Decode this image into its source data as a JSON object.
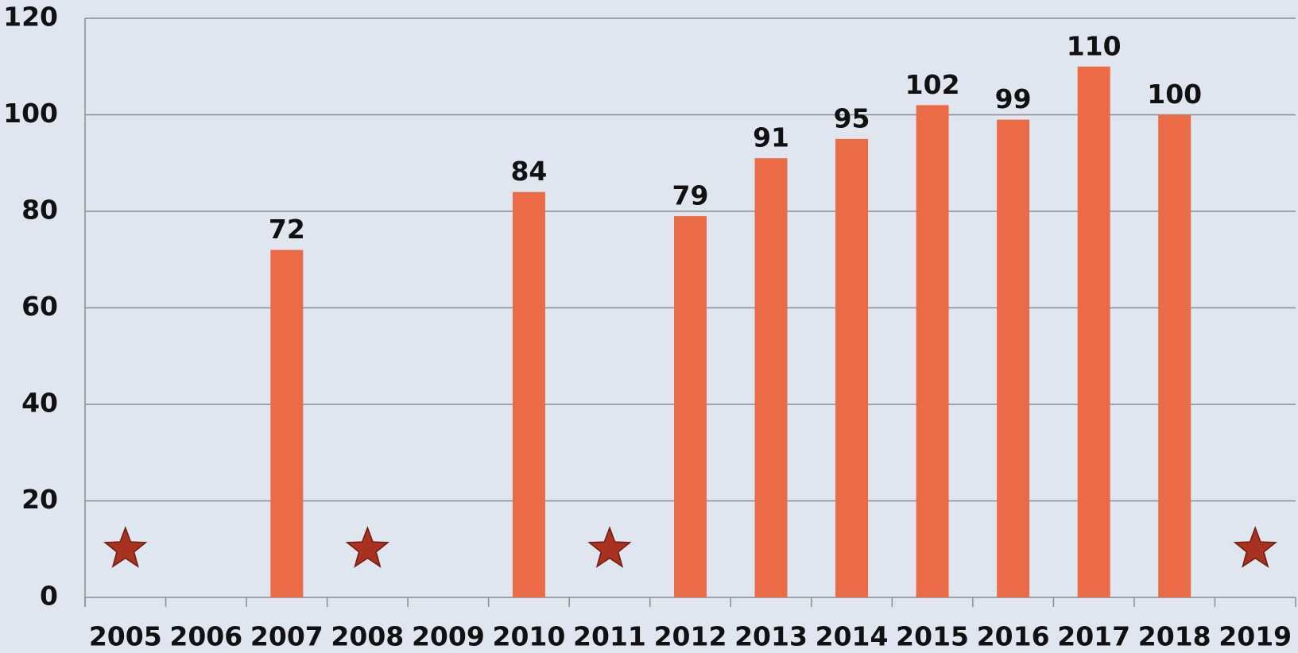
{
  "chart_data": {
    "type": "bar",
    "categories": [
      "2005",
      "2006",
      "2007",
      "2008",
      "2009",
      "2010",
      "2011",
      "2012",
      "2013",
      "2014",
      "2015",
      "2016",
      "2017",
      "2018",
      "2019"
    ],
    "values": [
      null,
      null,
      72,
      null,
      null,
      84,
      null,
      79,
      91,
      95,
      102,
      99,
      110,
      100,
      null
    ],
    "color": "#ec6b47",
    "markers": {
      "values": [
        10,
        null,
        null,
        10,
        null,
        null,
        10,
        null,
        null,
        null,
        null,
        null,
        null,
        null,
        10
      ],
      "color": "#a8321f"
    },
    "ylim": [
      0,
      120
    ],
    "yticks": [
      0,
      20,
      40,
      60,
      80,
      100,
      120
    ],
    "grid": true
  }
}
